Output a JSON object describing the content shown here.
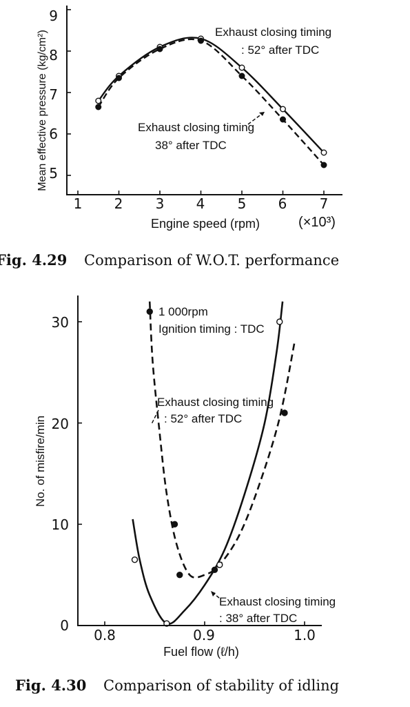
{
  "chart_data": [
    {
      "type": "line",
      "caption_number": "Fig. 4.29",
      "caption_text": "Comparison of W.O.T. performance",
      "xlabel": "Engine speed (rpm)",
      "x_multiplier": "(×10³)",
      "ylabel": "Mean effective pressure (kg/cm²)",
      "xlim": [
        1,
        7
      ],
      "ylim": [
        5,
        9
      ],
      "x_ticks": [
        "1",
        "2",
        "3",
        "4",
        "5",
        "6",
        "7"
      ],
      "y_ticks": [
        "5",
        "6",
        "7",
        "8",
        "9"
      ],
      "series": [
        {
          "annotation_line1": "Exhaust closing timing",
          "annotation_line2": ": 52° after TDC",
          "marker": "open circle",
          "line_style": "solid",
          "x": [
            1.5,
            2,
            3,
            4,
            5,
            6,
            7
          ],
          "y": [
            6.8,
            7.4,
            8.1,
            8.3,
            7.6,
            6.6,
            5.55
          ]
        },
        {
          "annotation_line1": "Exhaust closing timing",
          "annotation_line2": "38° after TDC",
          "marker": "filled circle",
          "line_style": "dashed",
          "x": [
            1.5,
            2,
            3,
            4,
            5,
            6,
            7
          ],
          "y": [
            6.65,
            7.35,
            8.05,
            8.25,
            7.4,
            6.35,
            5.25
          ]
        }
      ]
    },
    {
      "type": "line",
      "caption_number": "Fig. 4.30",
      "caption_text": "Comparison of stability of idling",
      "xlabel": "Fuel flow (ℓ/h)",
      "ylabel": "No. of misfire/min",
      "xlim": [
        0.77,
        1.01
      ],
      "ylim": [
        0,
        32
      ],
      "x_ticks": [
        "0.8",
        "0.9",
        "1.0"
      ],
      "y_ticks": [
        "0",
        "10",
        "20",
        "30"
      ],
      "condition_line1": "1 000rpm",
      "condition_line2": "Ignition timing : TDC",
      "series": [
        {
          "annotation_line1": "Exhaust closing timing",
          "annotation_line2": ": 52° after TDC",
          "marker": "filled circle",
          "line_style": "dashed",
          "x": [
            0.845,
            0.87,
            0.875,
            0.91,
            0.98
          ],
          "y": [
            31,
            10,
            5,
            5.5,
            21
          ]
        },
        {
          "annotation_line1": "Exhaust closing timing",
          "annotation_line2": ": 38° after TDC",
          "marker": "open circle",
          "line_style": "solid",
          "x": [
            0.83,
            0.862,
            0.915,
            0.975
          ],
          "y": [
            6.5,
            0.2,
            6,
            30
          ]
        }
      ]
    }
  ]
}
